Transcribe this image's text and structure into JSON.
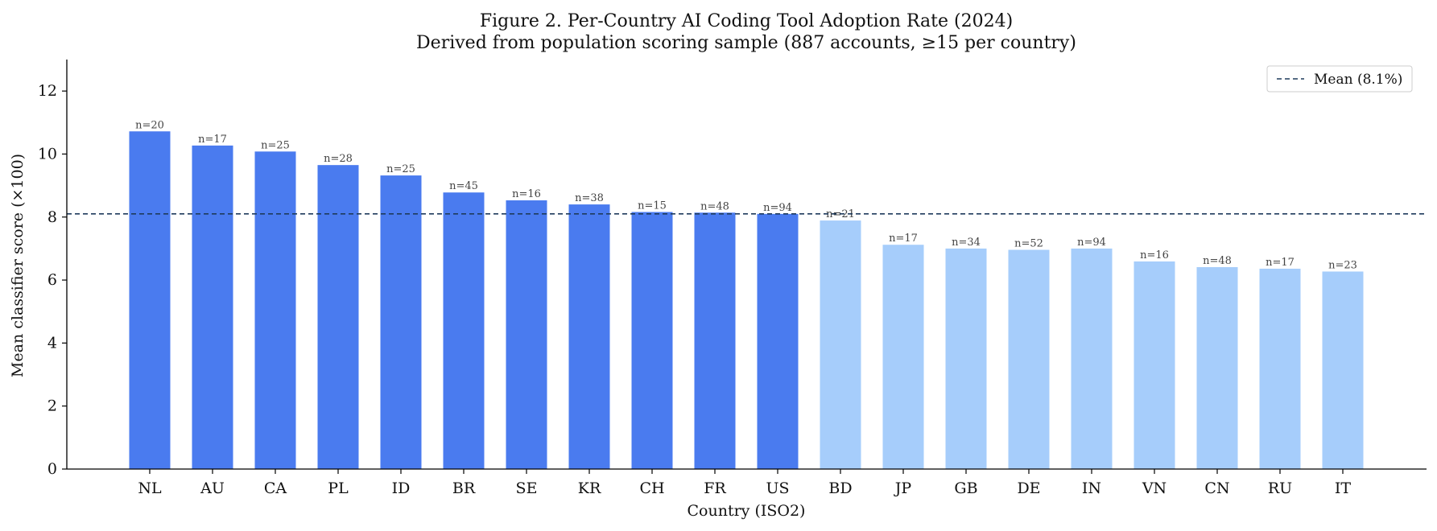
{
  "chart_data": {
    "type": "bar",
    "title": "Figure 2. Per-Country AI Coding Tool Adoption Rate (2024)",
    "subtitle": "Derived from population scoring sample (887 accounts, ≥15 per country)",
    "xlabel": "Country (ISO2)",
    "ylabel": "Mean classifier score (×100)",
    "ylim": [
      0,
      13
    ],
    "yticks": [
      0,
      2,
      4,
      6,
      8,
      10,
      12
    ],
    "categories": [
      "NL",
      "AU",
      "CA",
      "PL",
      "ID",
      "BR",
      "SE",
      "KR",
      "CH",
      "FR",
      "US",
      "BD",
      "JP",
      "GB",
      "DE",
      "IN",
      "VN",
      "CN",
      "RU",
      "IT"
    ],
    "values": [
      10.72,
      10.27,
      10.08,
      9.65,
      9.32,
      8.78,
      8.53,
      8.4,
      8.16,
      8.14,
      8.1,
      7.89,
      7.12,
      7.0,
      6.96,
      7.0,
      6.59,
      6.41,
      6.36,
      6.27
    ],
    "n_labels": [
      "n=20",
      "n=17",
      "n=25",
      "n=28",
      "n=25",
      "n=45",
      "n=16",
      "n=38",
      "n=15",
      "n=48",
      "n=94",
      "n=21",
      "n=17",
      "n=34",
      "n=52",
      "n=94",
      "n=16",
      "n=48",
      "n=17",
      "n=23"
    ],
    "mean": 8.1,
    "legend": {
      "label": "Mean (8.1%)",
      "placement": "top-right"
    },
    "colors": {
      "above_mean": "#4a7bef",
      "below_mean": "#a6cdfb",
      "mean_line": "#1f3b5c",
      "axis": "#000000"
    },
    "grid": false
  }
}
